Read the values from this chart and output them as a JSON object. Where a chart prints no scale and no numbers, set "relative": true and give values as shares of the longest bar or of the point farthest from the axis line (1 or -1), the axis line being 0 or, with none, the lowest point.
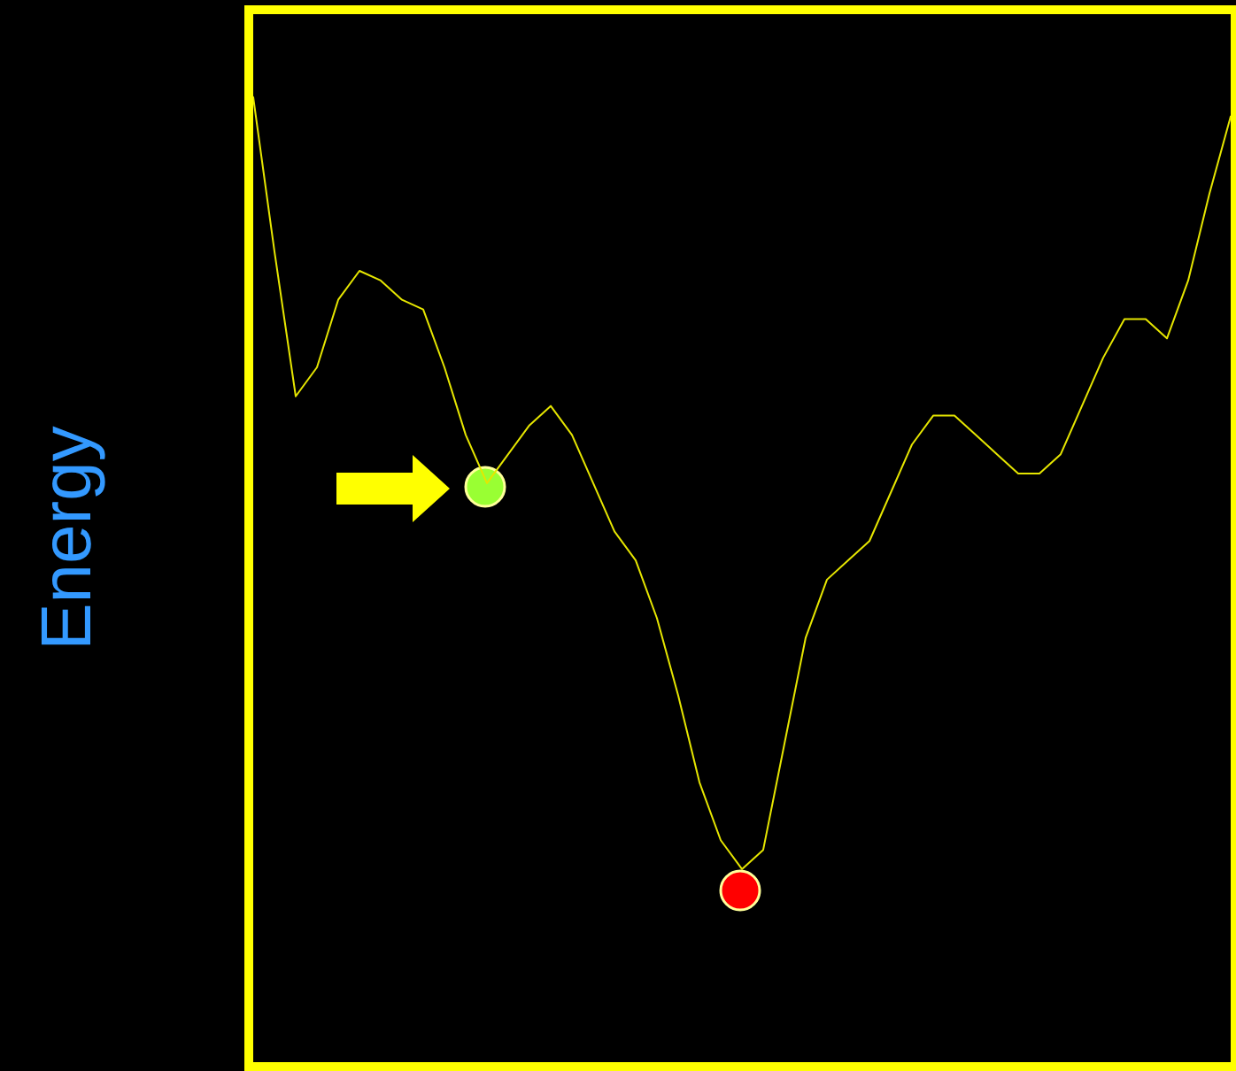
{
  "chart_data": {
    "type": "line",
    "ylabel": "Energy",
    "relative": true,
    "categories": [
      null,
      null,
      null,
      null,
      null,
      null,
      null,
      null,
      null,
      null,
      null,
      null,
      null,
      null,
      null,
      null,
      null,
      null,
      null,
      null,
      null,
      null,
      null,
      null,
      null,
      null,
      null,
      null,
      null,
      null,
      null,
      null,
      null,
      null,
      null,
      null,
      null,
      null,
      null,
      null,
      null,
      null,
      null,
      null,
      null,
      null,
      null
    ],
    "series": [
      {
        "color": "#e6e600",
        "values": [
          1.0,
          0.84,
          0.69,
          0.72,
          0.79,
          0.82,
          0.81,
          0.79,
          0.78,
          0.72,
          0.65,
          0.6,
          0.63,
          0.66,
          0.68,
          0.65,
          0.6,
          0.55,
          0.52,
          0.46,
          0.38,
          0.29,
          0.23,
          0.2,
          0.22,
          0.33,
          0.44,
          0.5,
          0.52,
          0.54,
          0.59,
          0.64,
          0.67,
          0.67,
          0.65,
          0.63,
          0.61,
          0.61,
          0.63,
          0.68,
          0.73,
          0.77,
          0.77,
          0.75,
          0.81,
          0.9,
          0.98
        ]
      }
    ]
  }
}
